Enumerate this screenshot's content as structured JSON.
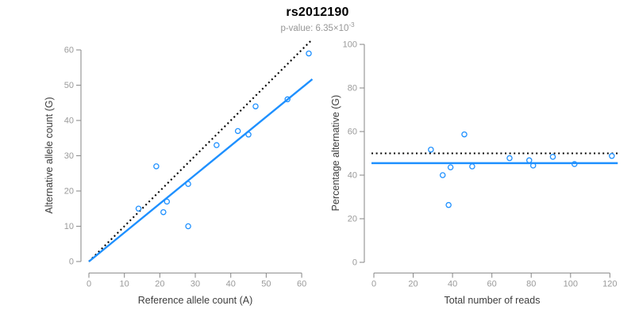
{
  "header": {
    "title": "rs2012190",
    "subtitle_prefix": "p-value: 6.35×10",
    "subtitle_exponent": "-3"
  },
  "colors": {
    "accent_blue": "#1E90FF",
    "dotted_line": "#000000",
    "axis_line": "#8f8f8f",
    "tick_label": "#9a9a9a",
    "axis_title": "#3d3d3d",
    "title": "#000000",
    "subtitle": "#969696",
    "background": "#ffffff"
  },
  "chart_data": [
    {
      "type": "scatter",
      "name": "allele-counts",
      "title": "",
      "xlabel": "Reference allele count (A)",
      "ylabel": "Alternative allele count (G)",
      "xlim": [
        0,
        63
      ],
      "ylim": [
        0,
        63
      ],
      "xticks": [
        0,
        10,
        20,
        30,
        40,
        50,
        60
      ],
      "yticks": [
        0,
        10,
        20,
        30,
        40,
        50,
        60
      ],
      "grid": false,
      "legend": null,
      "points": [
        [
          14,
          15
        ],
        [
          19,
          27
        ],
        [
          21,
          14
        ],
        [
          22,
          17
        ],
        [
          28,
          10
        ],
        [
          28,
          22
        ],
        [
          36,
          33
        ],
        [
          42,
          37
        ],
        [
          45,
          36
        ],
        [
          47,
          44
        ],
        [
          56,
          46
        ],
        [
          62,
          59
        ]
      ],
      "lines": [
        {
          "name": "identity-line",
          "style": "dotted",
          "color": "#000000",
          "from": [
            0,
            0
          ],
          "to": [
            63,
            63
          ]
        },
        {
          "name": "fit-line",
          "style": "solid",
          "color": "#1E90FF",
          "from": [
            0,
            0
          ],
          "to": [
            63,
            51.7
          ]
        }
      ]
    },
    {
      "type": "scatter",
      "name": "percentage-vs-reads",
      "title": "",
      "xlabel": "Total number of reads",
      "ylabel": "Percentage alternative (G)",
      "xlim": [
        0,
        124
      ],
      "ylim": [
        0,
        100
      ],
      "xticks": [
        0,
        20,
        40,
        60,
        80,
        100,
        120
      ],
      "yticks": [
        0,
        20,
        40,
        60,
        80,
        100
      ],
      "grid": false,
      "legend": null,
      "points": [
        [
          29,
          51.7
        ],
        [
          35,
          40.0
        ],
        [
          38,
          26.3
        ],
        [
          39,
          43.6
        ],
        [
          46,
          58.7
        ],
        [
          50,
          44.0
        ],
        [
          69,
          47.8
        ],
        [
          79,
          46.8
        ],
        [
          81,
          44.4
        ],
        [
          91,
          48.4
        ],
        [
          102,
          45.1
        ],
        [
          121,
          48.8
        ]
      ],
      "lines": [
        {
          "name": "expected-50pct-line",
          "style": "dotted",
          "color": "#000000",
          "from": [
            -1.2,
            50
          ],
          "to": [
            124,
            50
          ]
        },
        {
          "name": "fit-line",
          "style": "solid",
          "color": "#1E90FF",
          "from": [
            -1.2,
            45.5
          ],
          "to": [
            124,
            45.5
          ]
        }
      ]
    }
  ]
}
